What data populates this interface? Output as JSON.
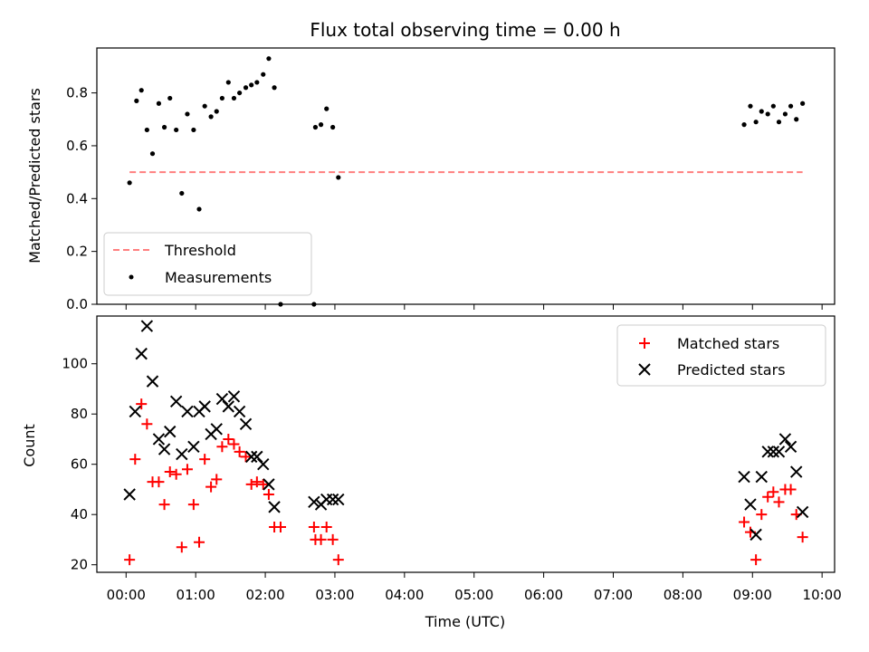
{
  "chart_data": [
    {
      "type": "scatter",
      "title": "Flux total observing time = 0.00 h",
      "xlabel": "",
      "ylabel": "Matched/Predicted stars",
      "xlim_hours": [
        -0.42,
        10.18
      ],
      "ylim": [
        0,
        0.97
      ],
      "yticks": [
        0.0,
        0.2,
        0.4,
        0.6,
        0.8
      ],
      "ytick_labels": [
        "0.0",
        "0.2",
        "0.4",
        "0.6",
        "0.8"
      ],
      "legend_position": "lower-left",
      "threshold": {
        "name": "Threshold",
        "value": 0.5,
        "x_range_hours": [
          0.05,
          9.72
        ],
        "color": "#ff7f7f"
      },
      "series": [
        {
          "name": "Measurements",
          "color": "#000000",
          "points": [
            [
              0.05,
              0.46
            ],
            [
              0.15,
              0.77
            ],
            [
              0.22,
              0.81
            ],
            [
              0.3,
              0.66
            ],
            [
              0.38,
              0.57
            ],
            [
              0.47,
              0.76
            ],
            [
              0.55,
              0.67
            ],
            [
              0.63,
              0.78
            ],
            [
              0.72,
              0.66
            ],
            [
              0.8,
              0.42
            ],
            [
              0.88,
              0.72
            ],
            [
              0.97,
              0.66
            ],
            [
              1.05,
              0.36
            ],
            [
              1.13,
              0.75
            ],
            [
              1.22,
              0.71
            ],
            [
              1.3,
              0.73
            ],
            [
              1.38,
              0.78
            ],
            [
              1.47,
              0.84
            ],
            [
              1.55,
              0.78
            ],
            [
              1.63,
              0.8
            ],
            [
              1.72,
              0.82
            ],
            [
              1.8,
              0.83
            ],
            [
              1.88,
              0.84
            ],
            [
              1.97,
              0.87
            ],
            [
              2.05,
              0.93
            ],
            [
              2.13,
              0.82
            ],
            [
              2.22,
              0.0
            ],
            [
              2.7,
              0.0
            ],
            [
              2.72,
              0.67
            ],
            [
              2.8,
              0.68
            ],
            [
              2.88,
              0.74
            ],
            [
              2.97,
              0.67
            ],
            [
              3.05,
              0.48
            ],
            [
              8.88,
              0.68
            ],
            [
              8.97,
              0.75
            ],
            [
              9.05,
              0.69
            ],
            [
              9.13,
              0.73
            ],
            [
              9.22,
              0.72
            ],
            [
              9.3,
              0.75
            ],
            [
              9.38,
              0.69
            ],
            [
              9.47,
              0.72
            ],
            [
              9.55,
              0.75
            ],
            [
              9.63,
              0.7
            ],
            [
              9.72,
              0.76
            ]
          ]
        }
      ]
    },
    {
      "type": "scatter",
      "title": "",
      "xlabel": "Time (UTC)",
      "ylabel": "Count",
      "xlim_hours": [
        -0.42,
        10.18
      ],
      "ylim": [
        17,
        119
      ],
      "yticks": [
        20,
        40,
        60,
        80,
        100
      ],
      "ytick_labels": [
        "20",
        "40",
        "60",
        "80",
        "100"
      ],
      "xticks_hours": [
        0,
        1,
        2,
        3,
        4,
        5,
        6,
        7,
        8,
        9,
        10
      ],
      "xtick_labels": [
        "00:00",
        "01:00",
        "02:00",
        "03:00",
        "04:00",
        "05:00",
        "06:00",
        "07:00",
        "08:00",
        "09:00",
        "10:00"
      ],
      "legend_position": "upper-right",
      "series": [
        {
          "name": "Matched stars",
          "marker": "plus",
          "color": "#ff0000",
          "points": [
            [
              0.05,
              22
            ],
            [
              0.13,
              62
            ],
            [
              0.22,
              84
            ],
            [
              0.3,
              76
            ],
            [
              0.38,
              53
            ],
            [
              0.47,
              53
            ],
            [
              0.55,
              44
            ],
            [
              0.63,
              57
            ],
            [
              0.72,
              56
            ],
            [
              0.8,
              27
            ],
            [
              0.88,
              58
            ],
            [
              0.97,
              44
            ],
            [
              1.05,
              29
            ],
            [
              1.13,
              62
            ],
            [
              1.22,
              51
            ],
            [
              1.3,
              54
            ],
            [
              1.38,
              67
            ],
            [
              1.47,
              70
            ],
            [
              1.55,
              68
            ],
            [
              1.63,
              65
            ],
            [
              1.72,
              63
            ],
            [
              1.8,
              52
            ],
            [
              1.88,
              53
            ],
            [
              1.97,
              52
            ],
            [
              2.05,
              48
            ],
            [
              2.13,
              35
            ],
            [
              2.22,
              35
            ],
            [
              2.7,
              35
            ],
            [
              2.72,
              30
            ],
            [
              2.8,
              30
            ],
            [
              2.88,
              35
            ],
            [
              2.97,
              30
            ],
            [
              3.05,
              22
            ],
            [
              8.88,
              37
            ],
            [
              8.97,
              33
            ],
            [
              9.05,
              22
            ],
            [
              9.13,
              40
            ],
            [
              9.22,
              47
            ],
            [
              9.3,
              49
            ],
            [
              9.38,
              45
            ],
            [
              9.47,
              50
            ],
            [
              9.55,
              50
            ],
            [
              9.63,
              40
            ],
            [
              9.72,
              31
            ]
          ]
        },
        {
          "name": "Predicted stars",
          "marker": "x",
          "color": "#000000",
          "points": [
            [
              0.05,
              48
            ],
            [
              0.13,
              81
            ],
            [
              0.22,
              104
            ],
            [
              0.3,
              115
            ],
            [
              0.38,
              93
            ],
            [
              0.47,
              70
            ],
            [
              0.55,
              66
            ],
            [
              0.63,
              73
            ],
            [
              0.72,
              85
            ],
            [
              0.8,
              64
            ],
            [
              0.88,
              81
            ],
            [
              0.97,
              67
            ],
            [
              1.05,
              81
            ],
            [
              1.13,
              83
            ],
            [
              1.22,
              72
            ],
            [
              1.3,
              74
            ],
            [
              1.38,
              86
            ],
            [
              1.47,
              83
            ],
            [
              1.55,
              87
            ],
            [
              1.63,
              81
            ],
            [
              1.72,
              76
            ],
            [
              1.8,
              63
            ],
            [
              1.88,
              63
            ],
            [
              1.97,
              60
            ],
            [
              2.05,
              52
            ],
            [
              2.13,
              43
            ],
            [
              2.7,
              45
            ],
            [
              2.8,
              44
            ],
            [
              2.88,
              46
            ],
            [
              2.97,
              46
            ],
            [
              3.05,
              46
            ],
            [
              8.88,
              55
            ],
            [
              8.97,
              44
            ],
            [
              9.05,
              32
            ],
            [
              9.13,
              55
            ],
            [
              9.22,
              65
            ],
            [
              9.3,
              65
            ],
            [
              9.38,
              65
            ],
            [
              9.47,
              70
            ],
            [
              9.55,
              67
            ],
            [
              9.63,
              57
            ],
            [
              9.72,
              41
            ]
          ]
        }
      ]
    }
  ]
}
